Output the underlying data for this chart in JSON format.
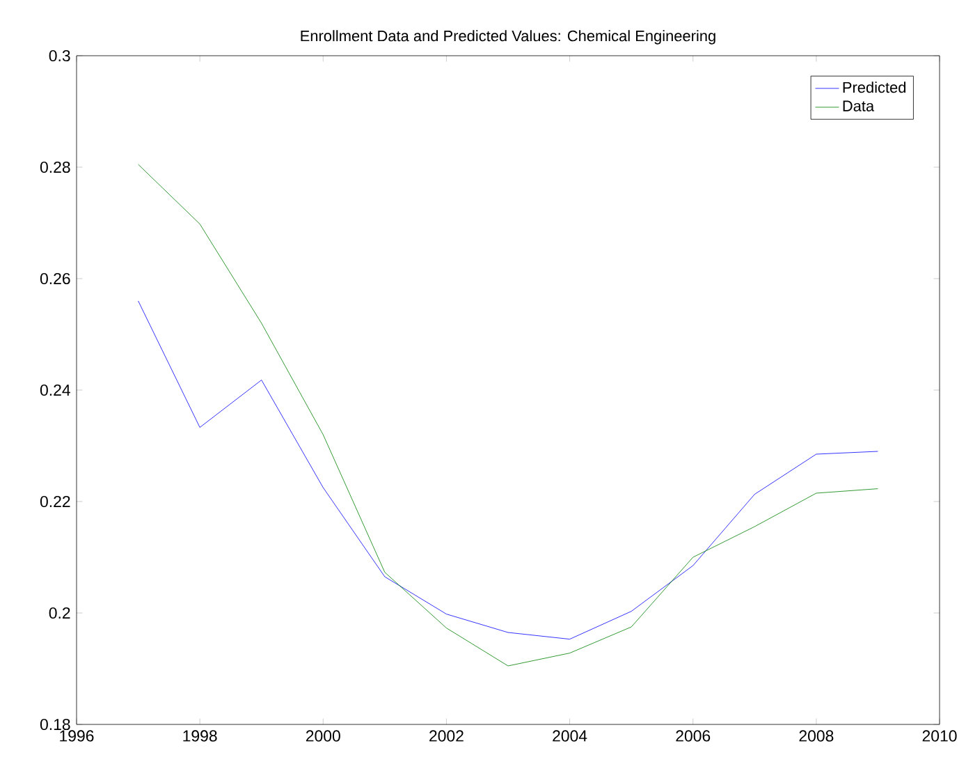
{
  "chart_data": {
    "type": "line",
    "title": "Enrollment Data and Predicted Values: Chemical Engineering",
    "x": [
      1997,
      1998,
      1999,
      2000,
      2001,
      2002,
      2003,
      2004,
      2005,
      2006,
      2007,
      2008,
      2009
    ],
    "series": [
      {
        "name": "Predicted",
        "color": "#0000ff",
        "values": [
          0.256,
          0.2333,
          0.2418,
          0.2225,
          0.2065,
          0.1998,
          0.1965,
          0.1953,
          0.2003,
          0.2085,
          0.2213,
          0.2285,
          0.229
        ]
      },
      {
        "name": "Data",
        "color": "#008000",
        "values": [
          0.2805,
          0.2698,
          0.252,
          0.232,
          0.2073,
          0.1973,
          0.1905,
          0.1928,
          0.1975,
          0.21,
          0.2155,
          0.2215,
          0.2223
        ]
      }
    ],
    "xlim": [
      1996,
      2010
    ],
    "xticks": [
      1996,
      1998,
      2000,
      2002,
      2004,
      2006,
      2008,
      2010
    ],
    "ylim": [
      0.18,
      0.3
    ],
    "yticks": [
      0.18,
      0.2,
      0.22,
      0.24,
      0.26,
      0.28,
      0.3
    ],
    "legend": "top right",
    "grid": false,
    "marker": "none",
    "line_style": "solid"
  }
}
